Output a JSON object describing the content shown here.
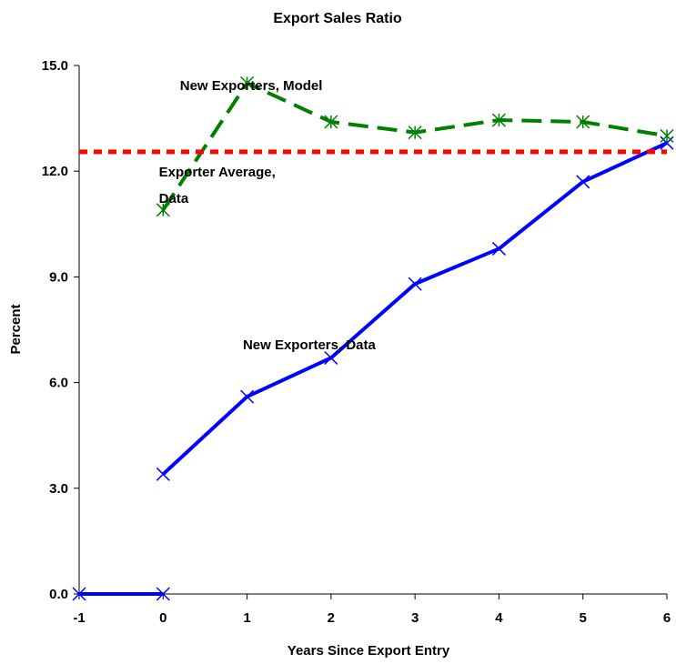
{
  "chart_data": {
    "type": "line",
    "title": "Export Sales Ratio",
    "xlabel": "Years Since Export Entry",
    "ylabel": "Percent",
    "xlim": [
      -1,
      6
    ],
    "ylim": [
      0,
      15
    ],
    "x_ticks": [
      "-1",
      "0",
      "1",
      "2",
      "3",
      "4",
      "5",
      "6"
    ],
    "y_ticks": [
      "0.0",
      "3.0",
      "6.0",
      "9.0",
      "12.0",
      "15.0"
    ],
    "grid": false,
    "legend": "none",
    "series": [
      {
        "color": "#0000ff",
        "style": "solid",
        "marker": "x",
        "segments": [
          {
            "x": [
              -1,
              0
            ],
            "y": [
              0.0,
              0.0
            ]
          },
          {
            "x": [
              0,
              1,
              2,
              3,
              4,
              5,
              6
            ],
            "y": [
              3.4,
              5.6,
              6.7,
              8.8,
              9.8,
              11.7,
              12.8
            ]
          }
        ]
      },
      {
        "color": "#008000",
        "style": "dashed",
        "marker": "asterisk",
        "segments": [
          {
            "x": [
              0,
              1,
              2,
              3,
              4,
              5,
              6
            ],
            "y": [
              10.9,
              14.5,
              13.4,
              13.1,
              13.45,
              13.4,
              13.0
            ]
          }
        ]
      },
      {
        "color": "#ff0000",
        "style": "dotted",
        "marker": "none",
        "segments": [
          {
            "x": [
              -1,
              6
            ],
            "y": [
              12.55,
              12.55
            ]
          }
        ]
      }
    ],
    "annotations": [
      {
        "text": "New Exporters, Model",
        "x": 0.2,
        "y": 14.3
      },
      {
        "text": "Exporter Average,",
        "x": -0.05,
        "y": 11.85
      },
      {
        "text": "Data",
        "x": -0.05,
        "y": 11.1
      },
      {
        "text": "New Exporters, Data",
        "x": 0.95,
        "y": 6.95
      }
    ]
  }
}
